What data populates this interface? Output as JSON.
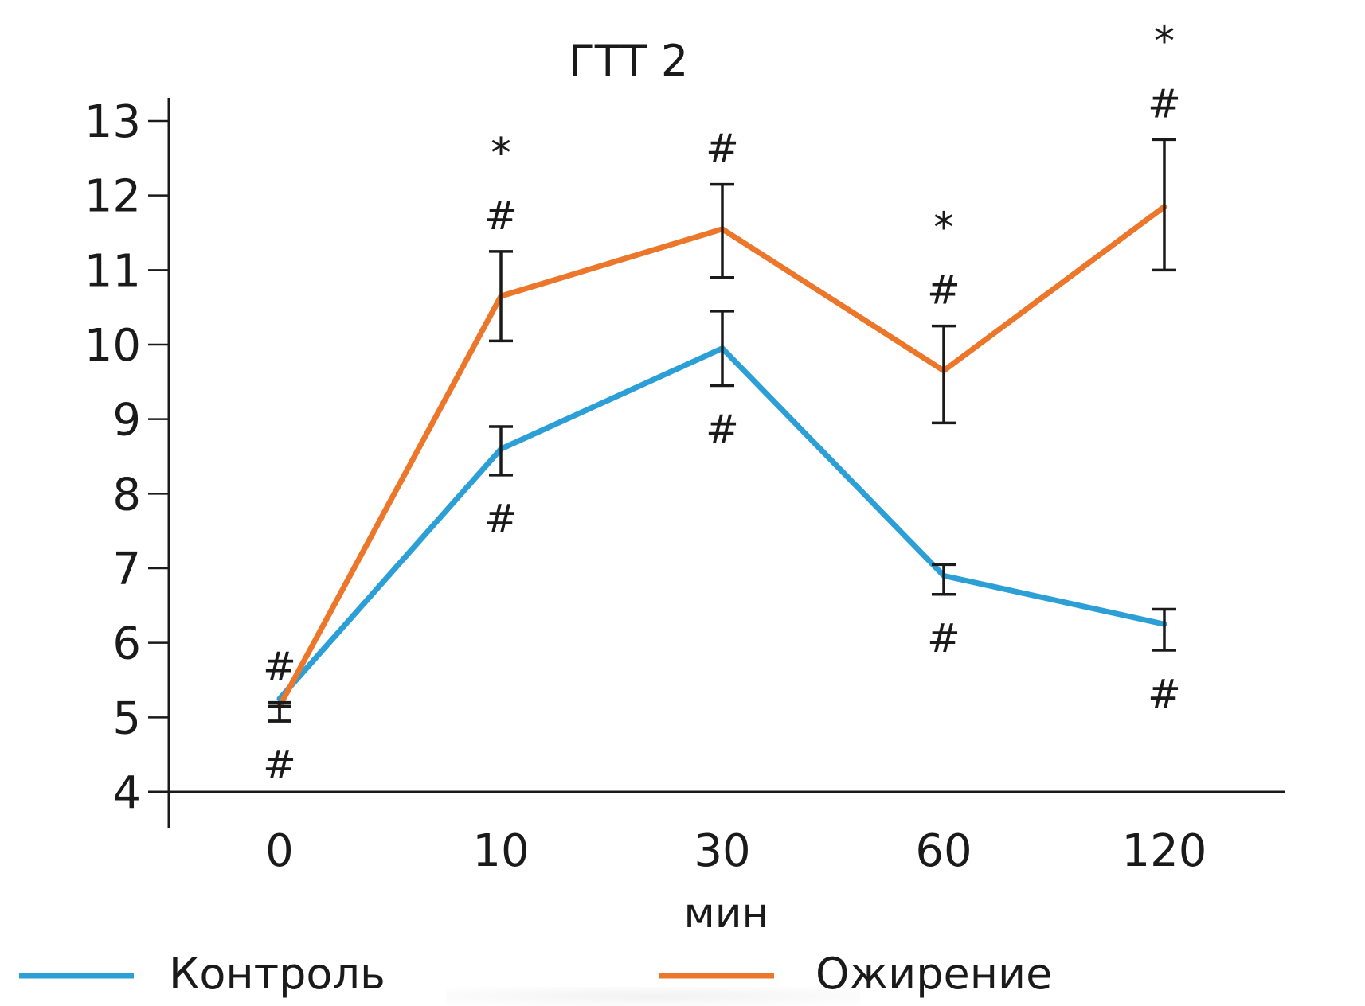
{
  "chart_data": {
    "type": "line",
    "title": "ГТТ 2",
    "xlabel": "мин",
    "ylabel": "",
    "categories": [
      "0",
      "10",
      "30",
      "60",
      "120"
    ],
    "ylim": [
      4,
      13
    ],
    "yticks": [
      4,
      5,
      6,
      7,
      8,
      9,
      10,
      11,
      12,
      13
    ],
    "grid": false,
    "legend_position": "bottom",
    "series": [
      {
        "name": "Контроль",
        "color": "#2b9fd6",
        "values": [
          5.25,
          8.6,
          9.95,
          6.9,
          6.25
        ],
        "error_low": [
          4.95,
          8.25,
          9.45,
          6.65,
          5.9
        ],
        "error_high": [
          5.15,
          8.9,
          10.45,
          7.05,
          6.45
        ],
        "annotations": [
          [
            "#"
          ],
          [
            "#"
          ],
          [
            "#"
          ],
          [
            "#"
          ],
          [
            "#"
          ]
        ],
        "annotation_side": "below"
      },
      {
        "name": "Ожирение",
        "color": "#ec762a",
        "values": [
          5.15,
          10.65,
          11.55,
          9.65,
          11.85
        ],
        "error_low": [
          4.95,
          10.05,
          10.9,
          8.95,
          11.0
        ],
        "error_high": [
          5.2,
          11.25,
          12.15,
          10.25,
          12.75
        ],
        "annotations": [
          [
            "#"
          ],
          [
            "#",
            "*"
          ],
          [
            "#"
          ],
          [
            "#",
            "*"
          ],
          [
            "#",
            "*"
          ]
        ],
        "annotation_side": "above"
      }
    ]
  }
}
